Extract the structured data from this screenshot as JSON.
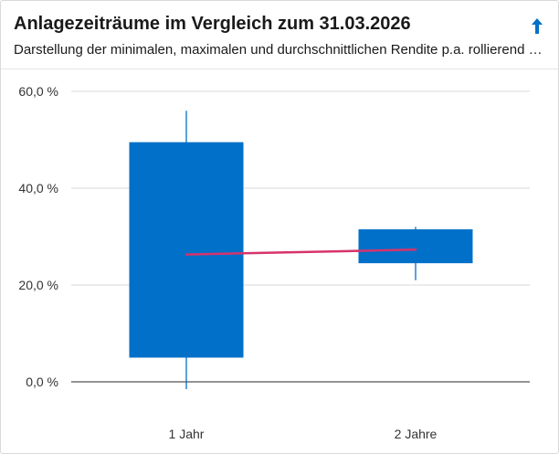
{
  "header": {
    "title": "Anlagezeiträume im Vergleich zum 31.03.2026",
    "subtitle": "Darstellung der minimalen, maximalen und durchschnittlichen Rendite p.a. rollierend über verschiedene Anlagezeiträume",
    "collapse_icon": "arrow-up-icon"
  },
  "colors": {
    "box": "#0070c9",
    "average_line": "#d6336c",
    "grid": "#d9d9d9",
    "axis": "#555555"
  },
  "chart_data": {
    "type": "candlestick",
    "categories": [
      "1 Jahr",
      "2 Jahre"
    ],
    "series": [
      {
        "box_low": [
          5.0,
          24.5
        ],
        "box_high": [
          49.5,
          31.5
        ],
        "whisker_low": [
          -1.5,
          21.0
        ],
        "whisker_high": [
          56.0,
          32.0
        ],
        "average": [
          26.3,
          27.3
        ]
      }
    ],
    "ylim": [
      0,
      60
    ],
    "yticks": [
      0,
      20,
      40,
      60
    ],
    "ytick_labels": [
      "0,0 %",
      "20,0 %",
      "40,0 %",
      "60,0 %"
    ],
    "grid": true,
    "legend": "none"
  }
}
